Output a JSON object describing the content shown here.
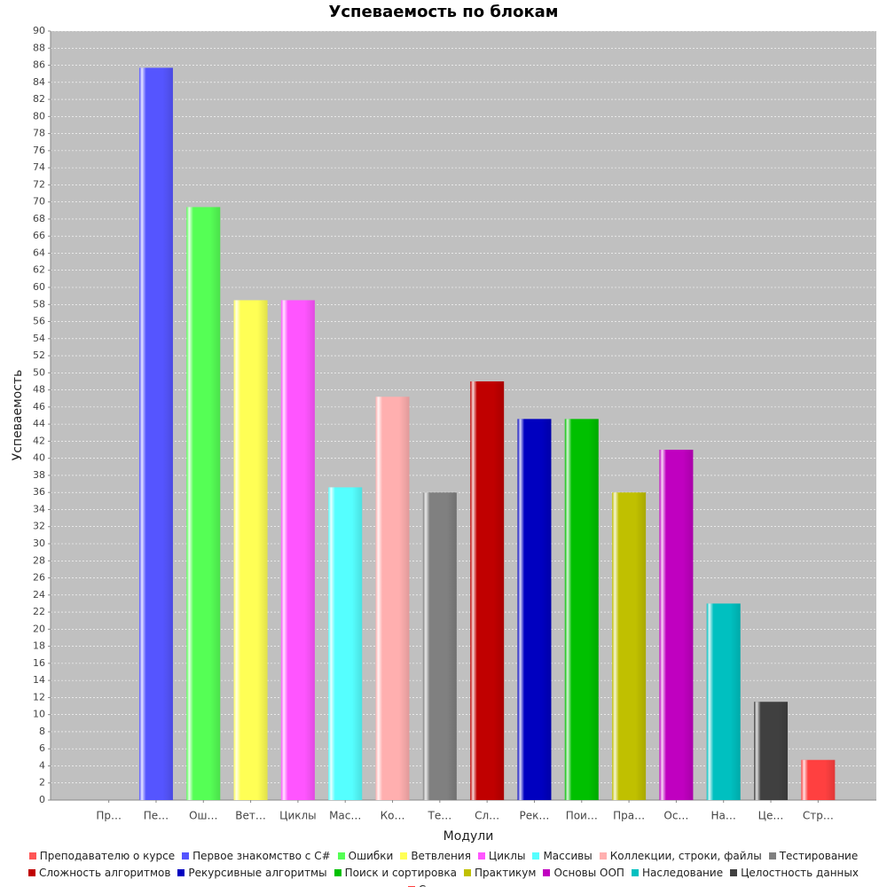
{
  "chart_data": {
    "type": "bar",
    "title": "Успеваемость по блокам",
    "x_label": "Модули",
    "y_label": "Успеваемость",
    "categories": [
      "Пр…",
      "Пе…",
      "Ош…",
      "Вет…",
      "Циклы",
      "Мас…",
      "Ко…",
      "Те…",
      "Сл…",
      "Рек…",
      "Пои…",
      "Пра…",
      "Ос…",
      "На…",
      "Це…",
      "Стр…"
    ],
    "values": [
      0,
      85.7,
      69.4,
      58.5,
      58.5,
      36.6,
      47.2,
      36.0,
      49.0,
      44.6,
      44.6,
      36.0,
      41.0,
      23.0,
      11.5,
      4.7
    ],
    "legend": [
      {
        "name": "Преподавателю о курсе",
        "color": "#ff5555"
      },
      {
        "name": "Первое знакомство с C#",
        "color": "#5555ff"
      },
      {
        "name": "Ошибки",
        "color": "#55ff55"
      },
      {
        "name": "Ветвления",
        "color": "#ffff55"
      },
      {
        "name": "Циклы",
        "color": "#ff55ff"
      },
      {
        "name": "Массивы",
        "color": "#55ffff"
      },
      {
        "name": "Коллекции, строки, файлы",
        "color": "#ffafaf"
      },
      {
        "name": "Тестирование",
        "color": "#808080"
      },
      {
        "name": "Сложность алгоритмов",
        "color": "#c00000"
      },
      {
        "name": "Рекурсивные алгоритмы",
        "color": "#0000c0"
      },
      {
        "name": "Поиск и сортировка",
        "color": "#00c000"
      },
      {
        "name": "Практикум",
        "color": "#c0c000"
      },
      {
        "name": "Основы ООП",
        "color": "#c000c0"
      },
      {
        "name": "Наследование",
        "color": "#00c0c0"
      },
      {
        "name": "Целостность данных",
        "color": "#404040"
      },
      {
        "name": "Структуры",
        "color": "#ff4040"
      }
    ],
    "ylim": [
      0,
      90
    ],
    "yticks": [
      0,
      2,
      4,
      6,
      8,
      10,
      12,
      14,
      16,
      18,
      20,
      22,
      24,
      26,
      28,
      30,
      32,
      34,
      36,
      38,
      40,
      42,
      44,
      46,
      48,
      50,
      52,
      54,
      56,
      58,
      60,
      62,
      64,
      66,
      68,
      70,
      72,
      74,
      76,
      78,
      80,
      82,
      84,
      86,
      88,
      90
    ],
    "grid": true,
    "plot_background": "#c0c0c0"
  }
}
